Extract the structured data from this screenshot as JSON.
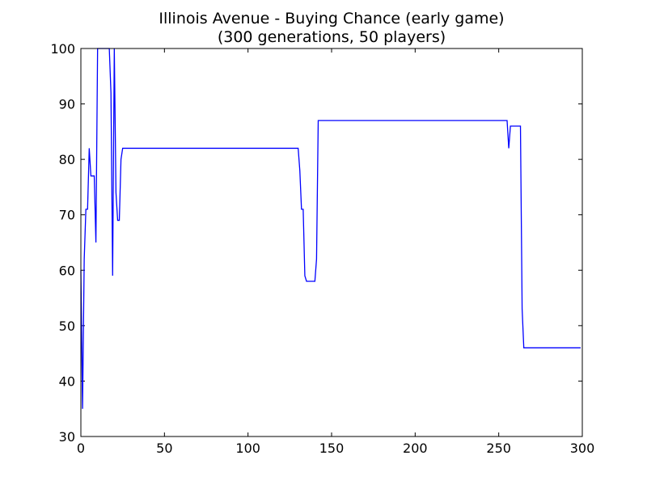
{
  "chart_data": {
    "type": "line",
    "title": "Illinois Avenue - Buying Chance (early game)",
    "subtitle": "(300 generations, 50 players)",
    "xlabel": "",
    "ylabel": "",
    "xlim": [
      0,
      300
    ],
    "ylim": [
      30,
      100
    ],
    "x_ticks": [
      "0",
      "50",
      "100",
      "150",
      "200",
      "250",
      "300"
    ],
    "y_ticks": [
      "30",
      "40",
      "50",
      "60",
      "70",
      "80",
      "90",
      "100"
    ],
    "grid": false,
    "legend": "none",
    "colors": {
      "series": "#0000ff",
      "axes": "#000000"
    },
    "series": [
      {
        "points": [
          [
            0,
            60
          ],
          [
            1,
            35
          ],
          [
            2,
            62
          ],
          [
            3,
            71
          ],
          [
            4,
            71
          ],
          [
            5,
            82
          ],
          [
            6,
            77
          ],
          [
            8,
            77
          ],
          [
            9,
            65
          ],
          [
            10,
            100
          ],
          [
            17,
            100
          ],
          [
            18,
            92
          ],
          [
            19,
            59
          ],
          [
            20,
            100
          ],
          [
            21,
            74
          ],
          [
            22,
            69
          ],
          [
            23,
            69
          ],
          [
            24,
            80
          ],
          [
            25,
            82
          ],
          [
            130,
            82
          ],
          [
            131,
            78
          ],
          [
            132,
            71
          ],
          [
            133,
            71
          ],
          [
            134,
            59
          ],
          [
            135,
            58
          ],
          [
            140,
            58
          ],
          [
            141,
            62
          ],
          [
            142,
            87
          ],
          [
            255,
            87
          ],
          [
            256,
            82
          ],
          [
            257,
            86
          ],
          [
            263,
            86
          ],
          [
            264,
            53
          ],
          [
            265,
            46
          ],
          [
            299,
            46
          ]
        ]
      }
    ]
  }
}
